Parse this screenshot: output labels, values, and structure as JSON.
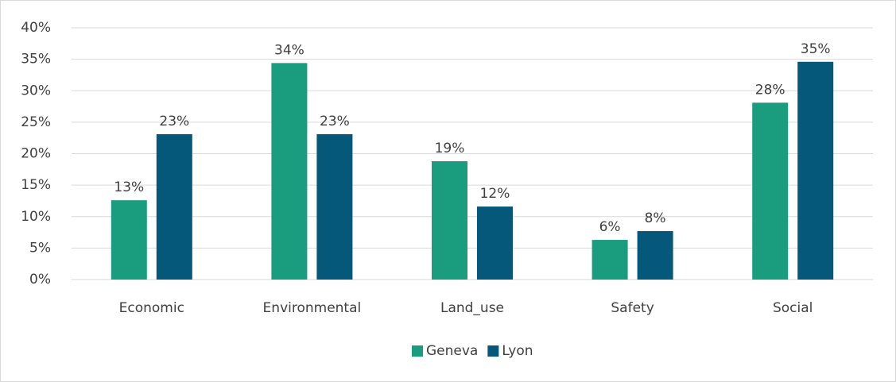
{
  "chart_data": {
    "type": "bar",
    "categories": [
      "Economic",
      "Environmental",
      "Land_use",
      "Safety",
      "Social"
    ],
    "series": [
      {
        "name": "Geneva",
        "color": "#1a9c7e",
        "values": [
          12.6,
          34.4,
          18.8,
          6.3,
          28.1
        ],
        "value_labels": [
          "13%",
          "34%",
          "19%",
          "6%",
          "28%"
        ]
      },
      {
        "name": "Lyon",
        "color": "#05587a",
        "values": [
          23.1,
          23.1,
          11.6,
          7.7,
          34.6
        ],
        "value_labels": [
          "23%",
          "23%",
          "12%",
          "8%",
          "35%"
        ]
      }
    ],
    "ylim": [
      0,
      40
    ],
    "yticks": [
      {
        "value": 0,
        "label": "0%"
      },
      {
        "value": 5,
        "label": "5%"
      },
      {
        "value": 10,
        "label": "10%"
      },
      {
        "value": 15,
        "label": "15%"
      },
      {
        "value": 20,
        "label": "20%"
      },
      {
        "value": 25,
        "label": "25%"
      },
      {
        "value": 30,
        "label": "30%"
      },
      {
        "value": 35,
        "label": "35%"
      },
      {
        "value": 40,
        "label": "40%"
      }
    ],
    "grid": true,
    "legend": "bottom"
  }
}
